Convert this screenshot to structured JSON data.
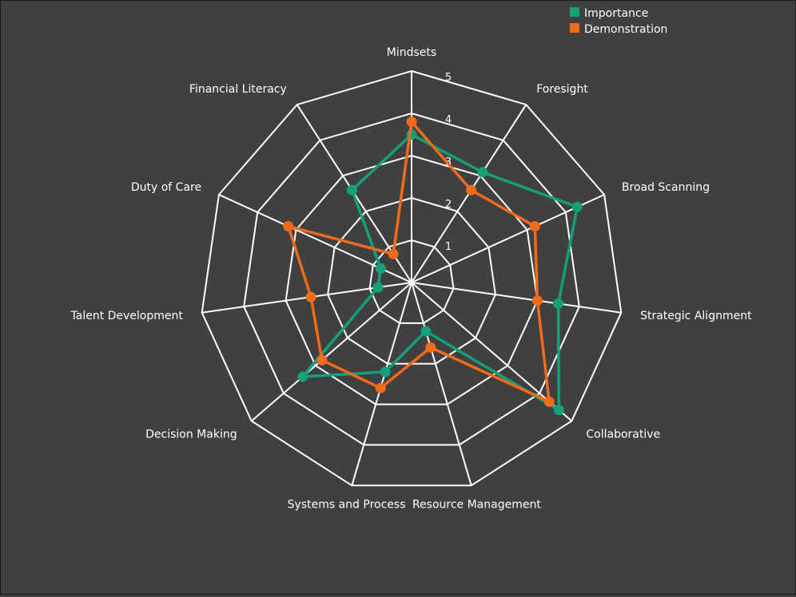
{
  "colors": {
    "background": "#404040",
    "grid": "#ffffff",
    "text": "#ffffff",
    "importance": "#13a07a",
    "demonstration": "#f26a1b"
  },
  "chart_data": {
    "type": "radar",
    "title": "",
    "categories": [
      "Mindsets",
      "Foresight",
      "Broad Scanning",
      "Strategic Alignment",
      "Collaborative",
      "Resource Management",
      "Systems and Process",
      "Decision Making",
      "Talent Development",
      "Duty of Care",
      "Financial Literacy"
    ],
    "rlim": [
      0,
      5
    ],
    "ticks": [
      "1",
      "2",
      "3",
      "4",
      "5"
    ],
    "grid": true,
    "legend_position": "top-right",
    "series": [
      {
        "name": "Importance",
        "values": [
          3.5,
          3.1,
          4.3,
          3.5,
          4.6,
          1.2,
          2.2,
          3.4,
          0.8,
          0.8,
          2.6
        ]
      },
      {
        "name": "Demonstration",
        "values": [
          3.8,
          2.6,
          3.2,
          3.0,
          4.3,
          1.6,
          2.6,
          2.8,
          2.4,
          3.2,
          0.8
        ]
      }
    ]
  }
}
